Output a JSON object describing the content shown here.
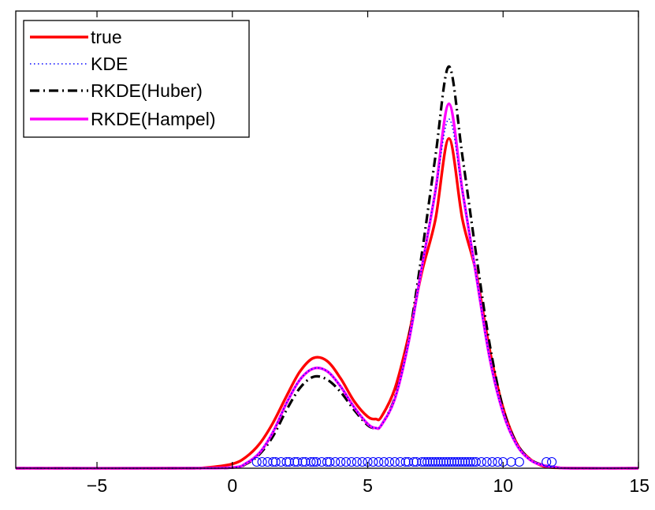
{
  "chart_data": {
    "type": "line",
    "title": "",
    "xlabel": "",
    "ylabel": "",
    "xlim": [
      -8,
      15
    ],
    "ylim": [
      0,
      0.33
    ],
    "x_ticks": [
      -5,
      0,
      5,
      10,
      15
    ],
    "x_tick_labels": [
      "−5",
      "0",
      "5",
      "10",
      "15"
    ],
    "y_ticks": [],
    "grid": false,
    "legend_position": "top-left",
    "series": [
      {
        "name": "true",
        "color": "#ff0000",
        "style": "solid",
        "x": [
          -8,
          -2,
          -1,
          0,
          0.5,
          1,
          1.5,
          2,
          2.5,
          3,
          3.5,
          4,
          4.5,
          5,
          5.3,
          5.5,
          6,
          6.5,
          7,
          7.5,
          8,
          8.5,
          9,
          9.5,
          10,
          10.5,
          11,
          11.5,
          12,
          13,
          15
        ],
        "y": [
          0,
          0,
          0.0004,
          0.0031,
          0.008,
          0.0175,
          0.0327,
          0.052,
          0.0699,
          0.0796,
          0.0774,
          0.0648,
          0.0483,
          0.0372,
          0.0355,
          0.037,
          0.0573,
          0.0947,
          0.1416,
          0.1795,
          0.238,
          0.1795,
          0.1416,
          0.0859,
          0.0437,
          0.0182,
          0.0065,
          0.0014,
          0.0003,
          0,
          0
        ]
      },
      {
        "name": "KDE",
        "color": "#0000ff",
        "style": "dotted",
        "x": [
          -8,
          -2,
          0,
          0.5,
          1,
          1.5,
          2,
          2.5,
          3,
          3.5,
          4,
          4.5,
          5,
          5.3,
          5.5,
          6,
          6.5,
          7,
          7.5,
          8,
          8.5,
          9,
          9.5,
          10,
          10.5,
          11,
          11.5,
          12,
          12.5,
          15
        ],
        "y": [
          0,
          0,
          0.0005,
          0.0035,
          0.011,
          0.026,
          0.047,
          0.064,
          0.072,
          0.07,
          0.059,
          0.044,
          0.032,
          0.029,
          0.031,
          0.05,
          0.09,
          0.145,
          0.2,
          0.252,
          0.2,
          0.14,
          0.08,
          0.04,
          0.017,
          0.006,
          0.002,
          0.0005,
          0,
          0
        ]
      },
      {
        "name": "RKDE(Huber)",
        "color": "#000000",
        "style": "dashdot",
        "x": [
          -8,
          -2,
          0,
          0.5,
          1,
          1.5,
          2,
          2.5,
          3,
          3.5,
          4,
          4.5,
          5,
          5.3,
          5.5,
          6,
          6.5,
          7,
          7.5,
          8,
          8.5,
          9,
          9.5,
          10,
          10.5,
          11,
          11.5,
          12,
          12.5,
          15
        ],
        "y": [
          0,
          0,
          0.0004,
          0.003,
          0.01,
          0.023,
          0.042,
          0.058,
          0.066,
          0.064,
          0.055,
          0.042,
          0.031,
          0.029,
          0.031,
          0.051,
          0.092,
          0.155,
          0.225,
          0.29,
          0.225,
          0.155,
          0.09,
          0.043,
          0.018,
          0.0065,
          0.0022,
          0.0006,
          0,
          0
        ]
      },
      {
        "name": "RKDE(Hampel)",
        "color": "#ff00ff",
        "style": "solid",
        "x": [
          -8,
          -2,
          0,
          0.5,
          1,
          1.5,
          2,
          2.5,
          3,
          3.5,
          4,
          4.5,
          5,
          5.3,
          5.5,
          6,
          6.5,
          7,
          7.5,
          8,
          8.5,
          9,
          9.5,
          10,
          10.5,
          11,
          11.5,
          12,
          12.5,
          15
        ],
        "y": [
          0,
          0,
          0.0005,
          0.0035,
          0.011,
          0.026,
          0.047,
          0.064,
          0.072,
          0.07,
          0.059,
          0.044,
          0.032,
          0.029,
          0.031,
          0.05,
          0.09,
          0.145,
          0.2,
          0.263,
          0.2,
          0.14,
          0.08,
          0.04,
          0.017,
          0.006,
          0.002,
          0.0005,
          0,
          0
        ]
      }
    ],
    "samples": {
      "color": "#0000ff",
      "marker": "circle",
      "x": [
        0.9,
        1.1,
        1.3,
        1.5,
        1.6,
        1.8,
        2.0,
        2.1,
        2.3,
        2.4,
        2.6,
        2.7,
        2.9,
        3.0,
        3.1,
        3.3,
        3.5,
        3.6,
        3.8,
        4.0,
        4.2,
        4.4,
        4.6,
        4.8,
        5.0,
        5.2,
        5.4,
        5.6,
        5.8,
        6.0,
        6.2,
        6.4,
        6.5,
        6.7,
        6.8,
        7.0,
        7.1,
        7.2,
        7.3,
        7.4,
        7.5,
        7.6,
        7.7,
        7.8,
        7.9,
        8.0,
        8.1,
        8.2,
        8.3,
        8.4,
        8.5,
        8.6,
        8.7,
        8.8,
        8.9,
        9.0,
        9.2,
        9.4,
        9.6,
        9.8,
        10.0,
        10.3,
        10.6,
        11.6,
        11.8
      ]
    }
  }
}
